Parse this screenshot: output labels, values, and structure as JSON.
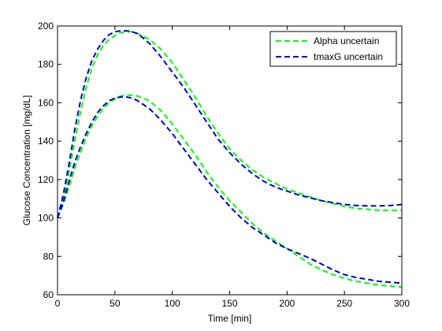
{
  "chart_data": {
    "type": "line",
    "title": "",
    "xlabel": "Time [min]",
    "ylabel": "Glucose Concentration [mg/dL]",
    "xlim": [
      0,
      300
    ],
    "ylim": [
      60,
      200
    ],
    "xticks": [
      0,
      50,
      100,
      150,
      200,
      250,
      300
    ],
    "yticks": [
      60,
      80,
      100,
      120,
      140,
      160,
      180,
      200
    ],
    "grid": false,
    "legend_position": "top-right",
    "series": [
      {
        "name": "Alpha uncertain",
        "color": "#00ff00",
        "style": "dashed",
        "bands": [
          {
            "x": [
              0,
              5,
              10,
              15,
              20,
              25,
              30,
              35,
              40,
              45,
              50,
              55,
              60,
              65,
              70,
              80,
              90,
              100,
              110,
              120,
              130,
              140,
              150,
              160,
              170,
              180,
              190,
              200,
              210,
              220,
              230,
              240,
              250,
              260,
              270,
              280,
              290,
              300
            ],
            "y": [
              100,
              110,
              124,
              140,
              155,
              168,
              178,
              185,
              190,
              193,
              195,
              196.5,
              197,
              197,
              196,
              193,
              188,
              181,
              172,
              163,
              153,
              144,
              136,
              130,
              125,
              121,
              118,
              115,
              113,
              111,
              109,
              107.5,
              106,
              105,
              104.5,
              104,
              104,
              104
            ]
          },
          {
            "x": [
              0,
              5,
              10,
              15,
              20,
              25,
              30,
              35,
              40,
              45,
              50,
              55,
              60,
              65,
              70,
              80,
              90,
              100,
              110,
              120,
              130,
              140,
              150,
              160,
              170,
              180,
              190,
              200,
              210,
              220,
              230,
              240,
              250,
              260,
              270,
              280,
              290,
              300
            ],
            "y": [
              100,
              107,
              116,
              126,
              134,
              142,
              148,
              153,
              157,
              160,
              162,
              163.5,
              164,
              164,
              163.5,
              161,
              156,
              149,
              141,
              133,
              124,
              116,
              109,
              103,
              97,
              92,
              88,
              84,
              80,
              76,
              73,
              70.5,
              68.5,
              67,
              66,
              65,
              64.5,
              64
            ]
          }
        ]
      },
      {
        "name": "tmaxG uncertain",
        "color": "#0000cc",
        "style": "dashed",
        "bands": [
          {
            "x": [
              0,
              5,
              10,
              15,
              20,
              25,
              30,
              35,
              40,
              45,
              50,
              55,
              60,
              65,
              70,
              80,
              90,
              100,
              110,
              120,
              130,
              140,
              150,
              160,
              170,
              180,
              190,
              200,
              210,
              220,
              230,
              240,
              250,
              260,
              270,
              280,
              290,
              300
            ],
            "y": [
              100,
              112,
              128,
              146,
              161,
              173,
              182,
              188,
              192.5,
              195.5,
              197,
              197.5,
              197.5,
              197,
              196,
              191,
              184,
              176,
              168,
              159,
              150,
              141,
              134,
              128,
              123,
              119,
              116,
              114,
              112,
              110.5,
              109,
              108,
              107,
              106.5,
              106.3,
              106.3,
              106.5,
              107
            ]
          },
          {
            "x": [
              0,
              5,
              10,
              15,
              20,
              25,
              30,
              35,
              40,
              45,
              50,
              55,
              60,
              65,
              70,
              80,
              90,
              100,
              110,
              120,
              130,
              140,
              150,
              160,
              170,
              180,
              190,
              200,
              210,
              220,
              230,
              240,
              250,
              260,
              270,
              280,
              290,
              300
            ],
            "y": [
              100,
              108,
              119,
              129,
              137,
              144,
              150,
              155,
              158.5,
              161,
              162.5,
              163,
              163,
              162.5,
              161,
              157,
              151,
              144,
              136,
              128,
              120,
              113,
              106,
              100,
              95,
              91,
              87,
              84,
              81.5,
              79,
              76,
              73,
              70.5,
              69,
              68,
              67,
              66.5,
              66
            ]
          }
        ]
      }
    ]
  }
}
